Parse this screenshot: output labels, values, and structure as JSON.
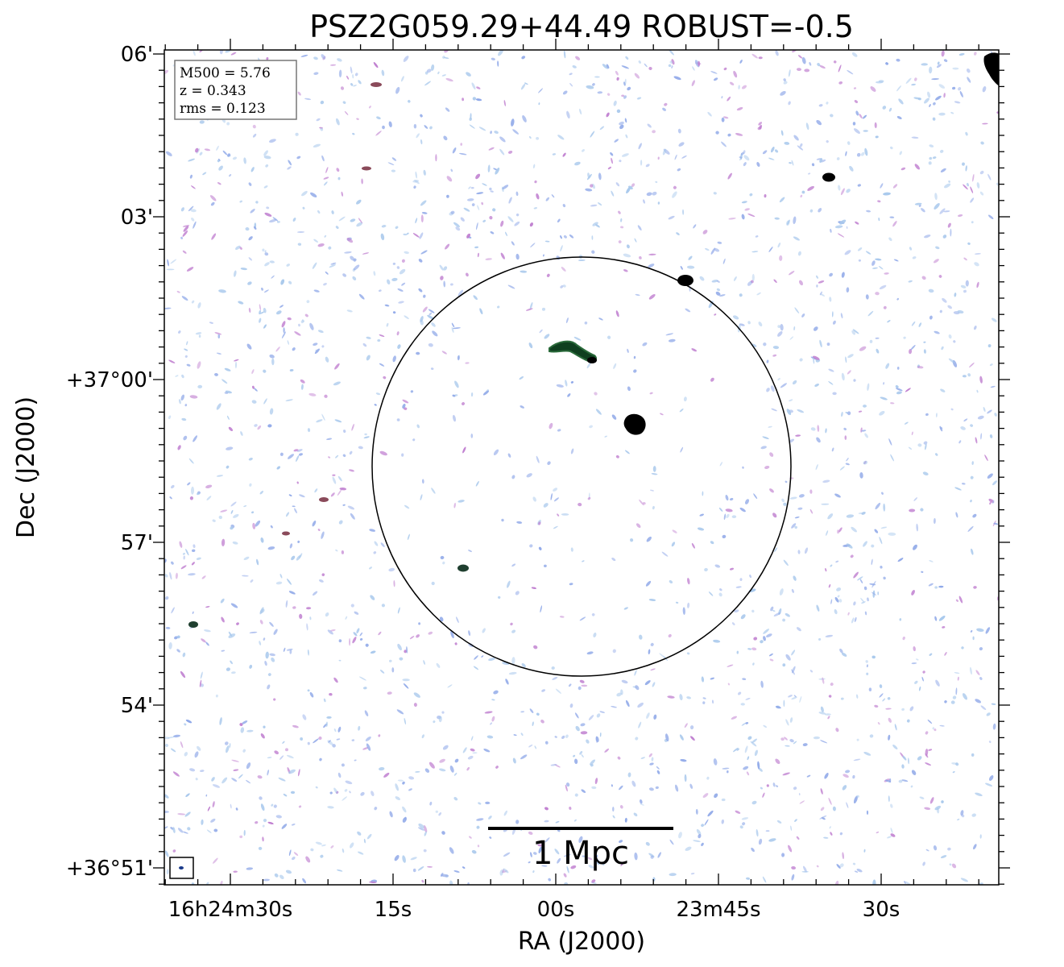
{
  "figure": {
    "title": "PSZ2G059.29+44.49 ROBUST=-0.5",
    "xlabel": "RA (J2000)",
    "ylabel": "Dec (J2000)"
  },
  "axes": {
    "x_ticks": [
      "16h24m30s",
      "15s",
      "00s",
      "23m45s",
      "30s"
    ],
    "y_ticks": [
      "06'",
      "03'",
      "+37°00'",
      "57'",
      "54'",
      "+36°51'"
    ]
  },
  "legend": {
    "lines": [
      "M500 = 5.76",
      "z = 0.343",
      "rms = 0.123"
    ]
  },
  "scale_bar": {
    "label": "1 Mpc"
  },
  "colors": {
    "noise_light": "#a8c8ec",
    "noise_blue": "#8fa8e8",
    "noise_purple": "#c080d0",
    "source": "#000000",
    "source_edge": "#2a6a3a"
  }
}
